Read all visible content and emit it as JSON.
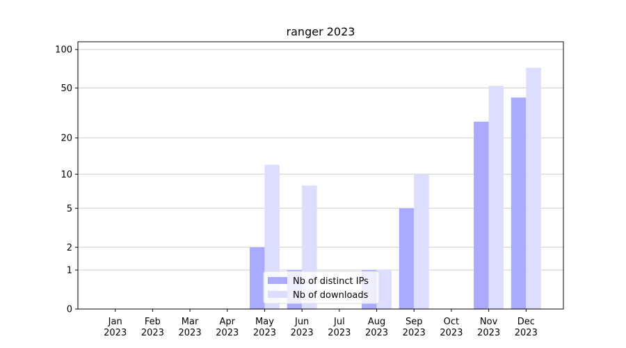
{
  "chart_data": {
    "type": "bar",
    "title": "ranger 2023",
    "categories": [
      "Jan 2023",
      "Feb 2023",
      "Mar 2023",
      "Apr 2023",
      "May 2023",
      "Jun 2023",
      "Jul 2023",
      "Aug 2023",
      "Sep 2023",
      "Oct 2023",
      "Nov 2023",
      "Dec 2023"
    ],
    "series": [
      {
        "name": "Nb of distinct IPs",
        "color": "#aaaaff",
        "values": [
          0,
          0,
          0,
          0,
          2,
          1,
          0,
          1,
          5,
          0,
          27,
          42
        ]
      },
      {
        "name": "Nb of downloads",
        "color": "#ddddff",
        "values": [
          0,
          0,
          0,
          0,
          12,
          8,
          0,
          1,
          10,
          0,
          52,
          72
        ]
      }
    ],
    "y_scale": "log1p",
    "ylim": [
      0,
      115
    ],
    "yticks": [
      0,
      1,
      2,
      5,
      10,
      20,
      50,
      100
    ],
    "grid": true,
    "legend": "lower center"
  }
}
